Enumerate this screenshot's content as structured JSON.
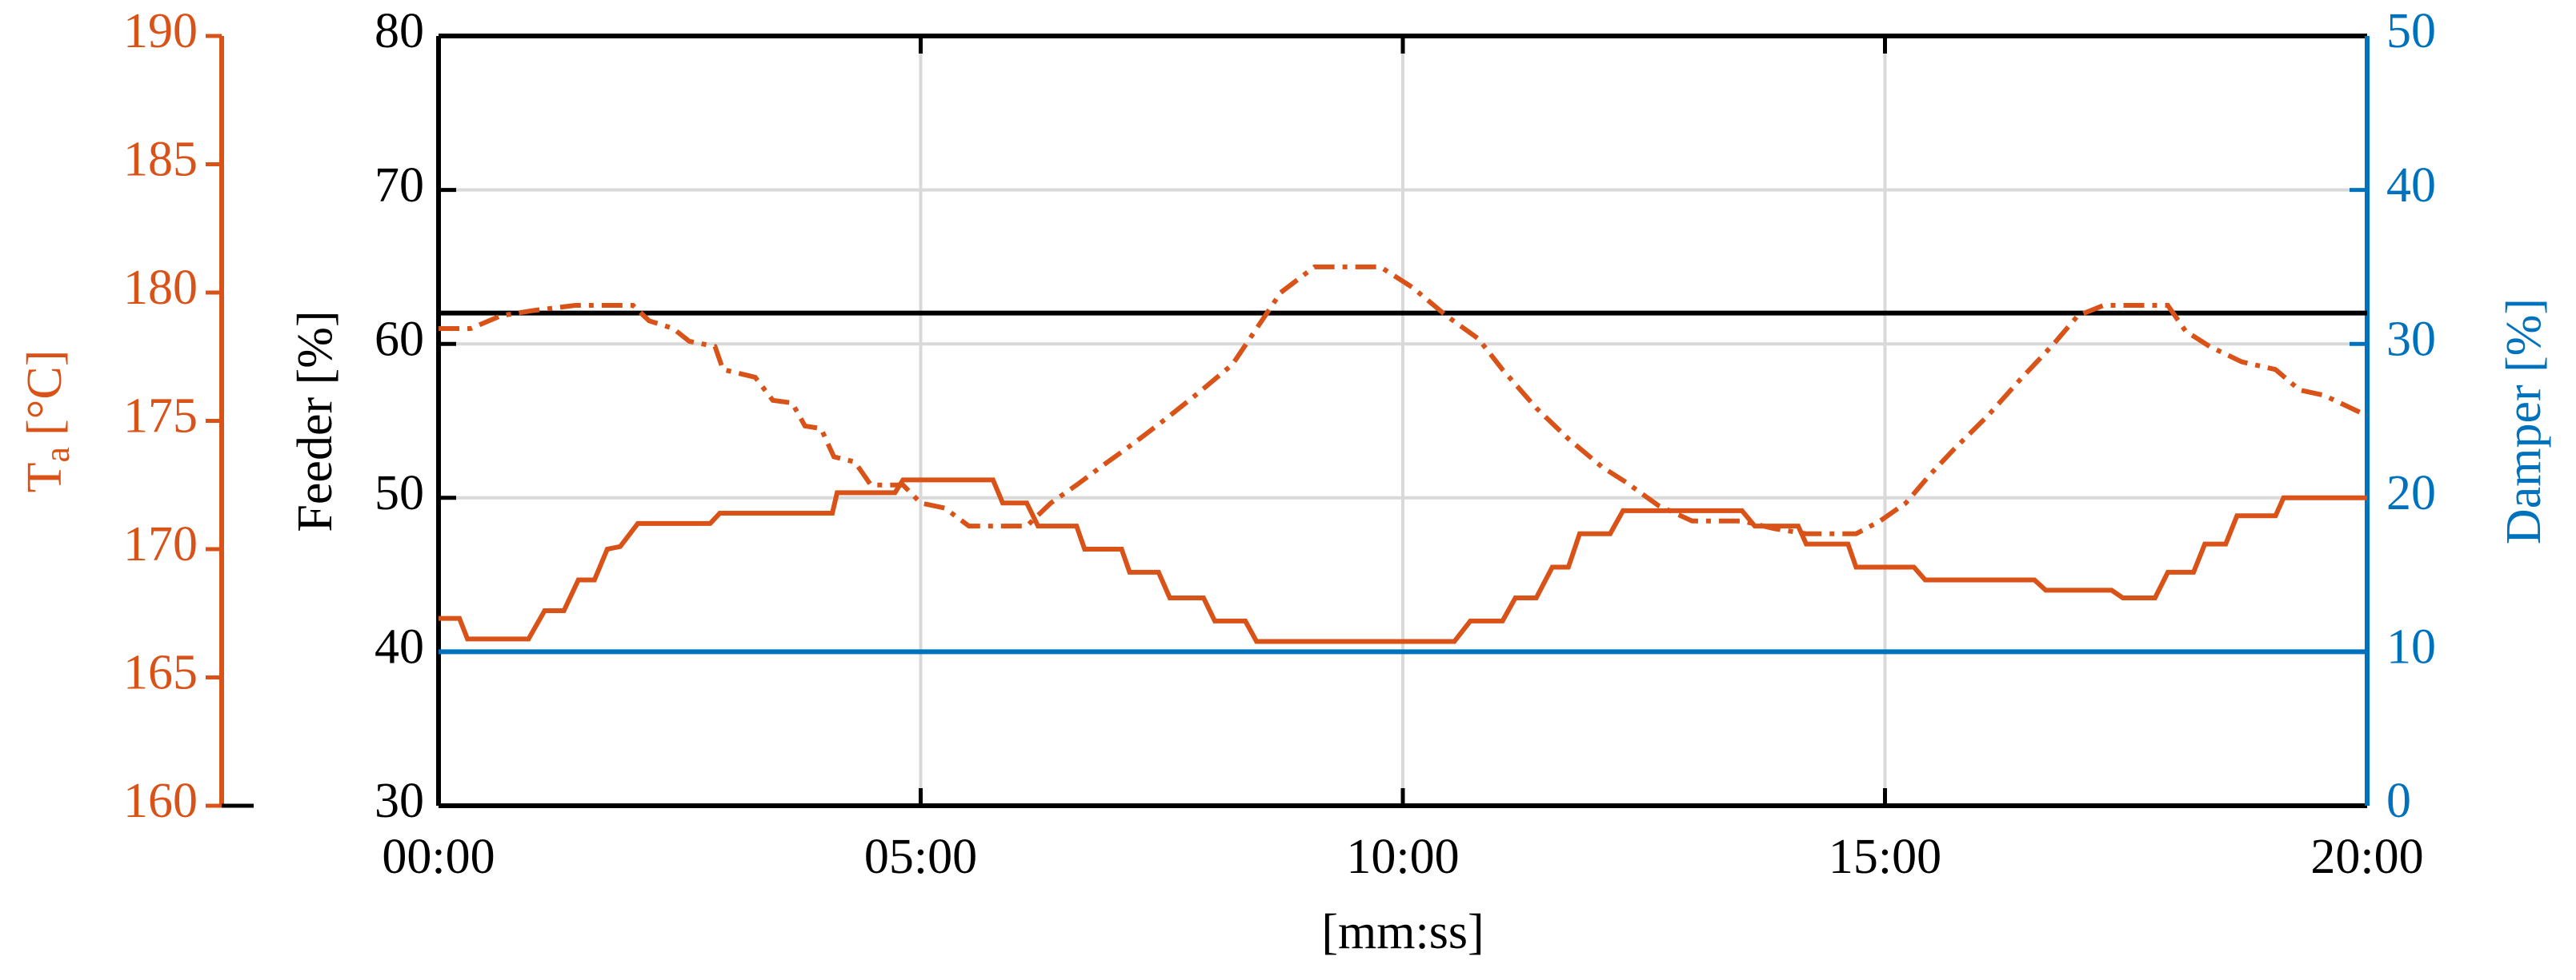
{
  "chart_data": {
    "type": "line",
    "xlabel": "[mm:ss]",
    "ylabel": "Feeder [%]",
    "y2label": "Damper [%]",
    "y3label": [
      "T",
      "a",
      "[°C]"
    ],
    "xlim": [
      0,
      1200
    ],
    "xticks": [
      {
        "value": 0,
        "label": "00:00"
      },
      {
        "value": 300,
        "label": "05:00"
      },
      {
        "value": 600,
        "label": "10:00"
      },
      {
        "value": 900,
        "label": "15:00"
      },
      {
        "value": 1200,
        "label": "20:00"
      }
    ],
    "ylim": [
      30,
      80
    ],
    "yticks": [
      30,
      40,
      50,
      60,
      70,
      80
    ],
    "y2lim": [
      0,
      50
    ],
    "y2ticks": [
      0,
      10,
      20,
      30,
      40,
      50
    ],
    "y3lim": [
      160,
      190
    ],
    "y3ticks": [
      160,
      165,
      170,
      175,
      180,
      185,
      190
    ],
    "axis_colors": {
      "y": "#000000",
      "y2": "#0072bd",
      "y3": "#d95319"
    },
    "grid": true,
    "series": [
      {
        "color": "#000000",
        "axis": "y",
        "style": "solid",
        "x": [
          0,
          1200
        ],
        "values": [
          62,
          62
        ]
      },
      {
        "color": "#0072bd",
        "axis": "y2",
        "style": "solid",
        "x": [
          0,
          1200
        ],
        "values": [
          10,
          10
        ]
      },
      {
        "color": "#d95319",
        "axis": "y3",
        "style": "solid",
        "x": [
          0,
          13,
          18,
          56,
          66,
          78,
          87,
          97,
          105,
          113,
          124,
          169,
          175,
          245,
          248,
          284,
          289,
          345,
          351,
          366,
          373,
          397,
          402,
          425,
          430,
          448,
          455,
          476,
          483,
          502,
          509,
          632,
          642,
          662,
          670,
          683,
          693,
          703,
          710,
          729,
          737,
          811,
          819,
          846,
          851,
          877,
          882,
          918,
          925,
          993,
          1000,
          1041,
          1048,
          1068,
          1076,
          1092,
          1099,
          1112,
          1119,
          1143,
          1148,
          1200
        ],
        "values": [
          167.3,
          167.3,
          166.5,
          166.5,
          167.6,
          167.6,
          168.8,
          168.8,
          170.0,
          170.1,
          171.0,
          171.0,
          171.4,
          171.4,
          172.2,
          172.2,
          172.7,
          172.7,
          171.8,
          171.8,
          170.9,
          170.9,
          170.0,
          170.0,
          169.1,
          169.1,
          168.1,
          168.1,
          167.2,
          167.2,
          166.4,
          166.4,
          167.2,
          167.2,
          168.1,
          168.1,
          169.3,
          169.3,
          170.6,
          170.6,
          171.5,
          171.5,
          170.9,
          170.9,
          170.2,
          170.2,
          169.3,
          169.3,
          168.8,
          168.8,
          168.4,
          168.4,
          168.1,
          168.1,
          169.1,
          169.1,
          170.2,
          170.2,
          171.3,
          171.3,
          172.0,
          172.0
        ]
      },
      {
        "color": "#d95319",
        "axis": "y3",
        "style": "dashdot",
        "x": [
          0,
          20,
          39,
          59,
          85,
          121,
          131,
          146,
          156,
          172,
          177,
          197,
          208,
          220,
          228,
          238,
          246,
          259,
          269,
          289,
          300,
          315,
          330,
          366,
          381,
          397,
          412,
          432,
          453,
          473,
          494,
          509,
          524,
          545,
          586,
          606,
          627,
          647,
          662,
          683,
          703,
          724,
          739,
          759,
          780,
          811,
          831,
          851,
          882,
          897,
          913,
          928,
          943,
          964,
          984,
          1005,
          1020,
          1036,
          1076,
          1087,
          1102,
          1122,
          1143,
          1158,
          1173,
          1200
        ],
        "values": [
          178.6,
          178.6,
          179.1,
          179.3,
          179.5,
          179.5,
          178.9,
          178.6,
          178.1,
          177.9,
          177.0,
          176.7,
          175.8,
          175.7,
          174.8,
          174.7,
          173.6,
          173.4,
          172.5,
          172.5,
          171.8,
          171.6,
          170.9,
          170.9,
          171.8,
          172.5,
          173.2,
          174.1,
          175.1,
          176.1,
          177.2,
          178.6,
          180.0,
          181.0,
          181.0,
          180.2,
          179.1,
          178.2,
          177.0,
          175.5,
          174.3,
          173.2,
          172.6,
          171.7,
          171.1,
          171.1,
          170.8,
          170.6,
          170.6,
          171.1,
          171.8,
          172.9,
          173.9,
          175.2,
          176.6,
          178.0,
          179.1,
          179.5,
          179.5,
          178.5,
          177.9,
          177.3,
          177.0,
          176.2,
          176.0,
          175.2
        ]
      }
    ]
  }
}
